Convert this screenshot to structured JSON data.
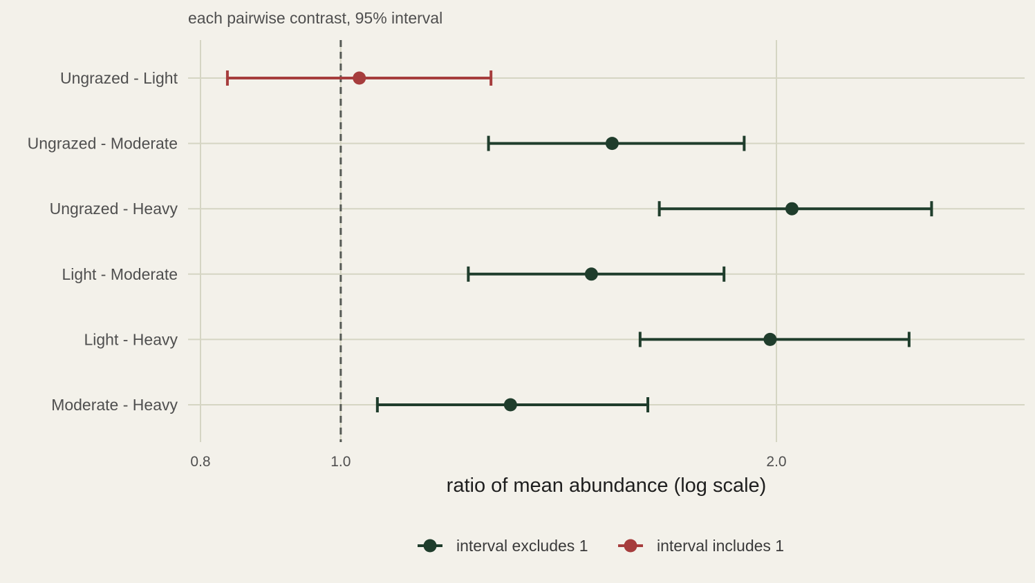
{
  "chart_data": {
    "type": "forest",
    "subtitle": "each pairwise contrast, 95% interval",
    "xlabel": "ratio of mean abundance (log scale)",
    "x_scale": "log",
    "xlim": [
      0.8,
      2.8
    ],
    "x_ticks": [
      {
        "value": 0.8,
        "label": "0.8"
      },
      {
        "value": 1.0,
        "label": "1.0"
      },
      {
        "value": 2.0,
        "label": "2.0"
      }
    ],
    "reference_line": 1.0,
    "grid": true,
    "legend_position": "bottom",
    "groups": [
      {
        "key": "excludes",
        "name": "interval excludes 1",
        "color": "#1f3d2c"
      },
      {
        "key": "includes",
        "name": "interval includes 1",
        "color": "#a63d3d"
      }
    ],
    "contrasts": [
      {
        "label": "Ungrazed - Light",
        "estimate": 1.03,
        "lower": 0.835,
        "upper": 1.27,
        "group": "includes"
      },
      {
        "label": "Ungrazed - Moderate",
        "estimate": 1.54,
        "lower": 1.265,
        "upper": 1.9,
        "group": "excludes"
      },
      {
        "label": "Ungrazed - Heavy",
        "estimate": 2.05,
        "lower": 1.66,
        "upper": 2.56,
        "group": "excludes"
      },
      {
        "label": "Light - Moderate",
        "estimate": 1.49,
        "lower": 1.225,
        "upper": 1.84,
        "group": "excludes"
      },
      {
        "label": "Light - Heavy",
        "estimate": 1.98,
        "lower": 1.61,
        "upper": 2.47,
        "group": "excludes"
      },
      {
        "label": "Moderate - Heavy",
        "estimate": 1.31,
        "lower": 1.06,
        "upper": 1.63,
        "group": "excludes"
      }
    ]
  }
}
